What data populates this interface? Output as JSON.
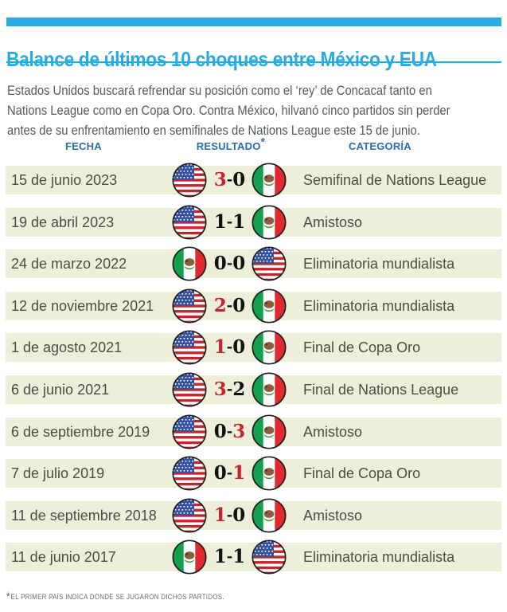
{
  "header": {
    "title": "Balance de últimos 10 choques entre México y EUA",
    "intro": "Estados Unidos buscará refrendar su posición como el ‘rey’ de Concacaf tanto en\nNations League como en Copa Oro. Contra México, hilvanó cinco partidos sin perder\nantes de su enfrentamiento en semifinales de Nations League este 15 de junio."
  },
  "table": {
    "columns": {
      "fecha": "FECHA",
      "resultado": "RESULTADO",
      "resultado_note_mark": "*",
      "categoria": "CATEGORÍA"
    },
    "matches": [
      {
        "date": "15 de junio 2023",
        "home_team": "USA",
        "away_team": "MEX",
        "home_score": "3",
        "away_score": "0",
        "winner": "home",
        "category": "Semifinal de Nations League"
      },
      {
        "date": "19 de abril 2023",
        "home_team": "USA",
        "away_team": "MEX",
        "home_score": "1",
        "away_score": "1",
        "winner": "draw",
        "category": "Amistoso"
      },
      {
        "date": "24 de marzo 2022",
        "home_team": "MEX",
        "away_team": "USA",
        "home_score": "0",
        "away_score": "0",
        "winner": "draw",
        "category": "Eliminatoria mundialista"
      },
      {
        "date": "12 de noviembre 2021",
        "home_team": "USA",
        "away_team": "MEX",
        "home_score": "2",
        "away_score": "0",
        "winner": "home",
        "category": "Eliminatoria mundialista"
      },
      {
        "date": "1 de agosto 2021",
        "home_team": "USA",
        "away_team": "MEX",
        "home_score": "1",
        "away_score": "0",
        "winner": "home",
        "category": "Final de Copa Oro"
      },
      {
        "date": "6 de junio 2021",
        "home_team": "USA",
        "away_team": "MEX",
        "home_score": "3",
        "away_score": "2",
        "winner": "home",
        "category": "Final de Nations League"
      },
      {
        "date": "6 de septiembre 2019",
        "home_team": "USA",
        "away_team": "MEX",
        "home_score": "0",
        "away_score": "3",
        "winner": "away",
        "category": "Amistoso"
      },
      {
        "date": "7 de julio 2019",
        "home_team": "USA",
        "away_team": "MEX",
        "home_score": "0",
        "away_score": "1",
        "winner": "away",
        "category": "Final de Copa Oro"
      },
      {
        "date": "11 de septiembre 2018",
        "home_team": "USA",
        "away_team": "MEX",
        "home_score": "1",
        "away_score": "0",
        "winner": "home",
        "category": "Amistoso"
      },
      {
        "date": "11 de junio 2017",
        "home_team": "MEX",
        "away_team": "USA",
        "home_score": "1",
        "away_score": "1",
        "winner": "draw",
        "category": "Eliminatoria mundialista"
      }
    ]
  },
  "footnote": {
    "mark": "*",
    "text": "EL PRIMER PAÍS INDICA DONDE SE JUGARON DICHOS PARTIDOS."
  },
  "icons": {
    "home_flag": "usa-flag-icon / mexico-flag-icon",
    "away_flag": "usa-flag-icon / mexico-flag-icon"
  },
  "colors": {
    "accent_cyan": "#29abe2",
    "column_header_blue": "#2a6cb3",
    "winner_score_red": "#c1272d",
    "score_black": "#111111",
    "row_background": "#edefdb",
    "intro_text_gray": "#58595b",
    "row_text_gray": "#4d4d45",
    "footnote_gray": "#6a6b6e",
    "usa_canton_blue": "#33519e",
    "usa_stripe_red": "#c1272d",
    "mexico_green": "#13a04e",
    "mexico_red": "#e02a2f"
  },
  "chart_data": {
    "type": "table",
    "title": "Balance de últimos 10 choques entre México y EUA",
    "columns": [
      "FECHA",
      "RESULTADO*",
      "CATEGORÍA"
    ],
    "rows": [
      [
        "15 de junio 2023",
        "USA 3-0 MEX",
        "Semifinal de Nations League"
      ],
      [
        "19 de abril 2023",
        "USA 1-1 MEX",
        "Amistoso"
      ],
      [
        "24 de marzo 2022",
        "MEX 0-0 USA",
        "Eliminatoria mundialista"
      ],
      [
        "12 de noviembre 2021",
        "USA 2-0 MEX",
        "Eliminatoria mundialista"
      ],
      [
        "1 de agosto 2021",
        "USA 1-0 MEX",
        "Final de Copa Oro"
      ],
      [
        "6 de junio 2021",
        "USA 3-2 MEX",
        "Final de Nations League"
      ],
      [
        "6 de septiembre 2019",
        "USA 0-3 MEX",
        "Amistoso"
      ],
      [
        "7 de julio 2019",
        "USA 0-1 MEX",
        "Final de Copa Oro"
      ],
      [
        "11 de septiembre 2018",
        "USA 1-0 MEX",
        "Amistoso"
      ],
      [
        "11 de junio 2017",
        "MEX 1-1 USA",
        "Eliminatoria mundialista"
      ]
    ],
    "note": "Red score digit marks the winning team; first listed country hosted the match."
  }
}
